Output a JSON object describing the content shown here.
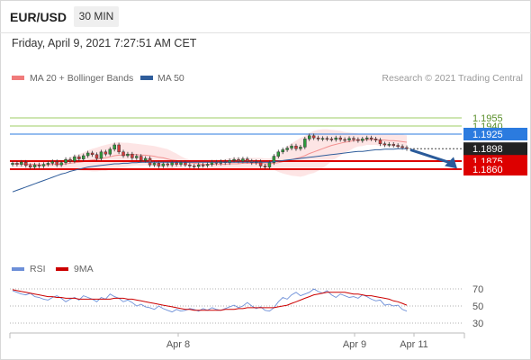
{
  "header": {
    "symbol": "EUR/USD",
    "timeframe": "30 MIN",
    "timestamp": "Friday, April 9, 2021 7:27:51 AM CET"
  },
  "colors": {
    "bollinger": "#f07b7b",
    "ma50": "#2f5d9b",
    "green_level": "#9ccc65",
    "blue_level": "#2b7bdf",
    "red_level": "#dd0000",
    "price_label": "#222222",
    "arrow": "#2a5a9a",
    "rsi": "#6d8fd8",
    "rsi_ma": "#cc0000"
  },
  "chart_data": [
    {
      "type": "candlestick",
      "title": "EUR/USD 30 MIN",
      "legend": [
        {
          "name": "MA 20 + Bollinger Bands",
          "color": "#f07b7b"
        },
        {
          "name": "MA 50",
          "color": "#2f5d9b"
        }
      ],
      "legend_placement": "top-left",
      "credit": "Research © 2021 Trading Central",
      "ylim": [
        1.18,
        1.197
      ],
      "x_ticks": [
        "Apr 8",
        "Apr 9",
        "Apr 11"
      ],
      "levels": [
        {
          "value": 1.1955,
          "label": "1.1955",
          "kind": "resistance"
        },
        {
          "value": 1.194,
          "label": "1.1940",
          "kind": "resistance"
        },
        {
          "value": 1.1925,
          "label": "1.1925",
          "kind": "pivot"
        },
        {
          "value": 1.1875,
          "label": "1.1875",
          "kind": "support"
        },
        {
          "value": 1.186,
          "label": "1.1860",
          "kind": "support"
        }
      ],
      "last_price": {
        "value": 1.1898,
        "label": "1.1898"
      },
      "forecast_arrow": {
        "from": 1.1896,
        "to": 1.1861,
        "direction": "down"
      },
      "closes": [
        1.1871,
        1.1869,
        1.1873,
        1.1867,
        1.1864,
        1.1868,
        1.1866,
        1.1869,
        1.1871,
        1.1874,
        1.1868,
        1.1872,
        1.1878,
        1.1875,
        1.1883,
        1.1879,
        1.1885,
        1.189,
        1.1887,
        1.188,
        1.1892,
        1.1888,
        1.1897,
        1.1905,
        1.1892,
        1.1885,
        1.1888,
        1.1881,
        1.1884,
        1.1876,
        1.188,
        1.1868,
        1.1871,
        1.1866,
        1.187,
        1.1868,
        1.1872,
        1.1869,
        1.1872,
        1.1868,
        1.1866,
        1.1865,
        1.1868,
        1.1867,
        1.1869,
        1.1873,
        1.1871,
        1.1874,
        1.1872,
        1.1876,
        1.1878,
        1.1875,
        1.1879,
        1.1875,
        1.1872,
        1.1874,
        1.1866,
        1.1864,
        1.1872,
        1.1884,
        1.1892,
        1.1896,
        1.1899,
        1.1903,
        1.1898,
        1.1901,
        1.1916,
        1.1922,
        1.1918,
        1.1916,
        1.1917,
        1.1916,
        1.1915,
        1.1918,
        1.1915,
        1.1914,
        1.1917,
        1.1915,
        1.1913,
        1.1916,
        1.1918,
        1.1916,
        1.1914,
        1.1907,
        1.1905,
        1.1906,
        1.1904,
        1.1902,
        1.19,
        1.1898
      ],
      "opens": [
        1.1869,
        1.1871,
        1.1869,
        1.1873,
        1.1867,
        1.1864,
        1.1868,
        1.1866,
        1.1869,
        1.1871,
        1.1874,
        1.1868,
        1.1872,
        1.1878,
        1.1875,
        1.1883,
        1.1879,
        1.1885,
        1.189,
        1.1887,
        1.188,
        1.1892,
        1.1888,
        1.1897,
        1.1905,
        1.1892,
        1.1885,
        1.1888,
        1.1881,
        1.1884,
        1.1876,
        1.188,
        1.1868,
        1.1871,
        1.1866,
        1.187,
        1.1868,
        1.1872,
        1.1869,
        1.1872,
        1.1868,
        1.1866,
        1.1865,
        1.1868,
        1.1867,
        1.1869,
        1.1873,
        1.1871,
        1.1874,
        1.1872,
        1.1876,
        1.1878,
        1.1875,
        1.1879,
        1.1875,
        1.1872,
        1.1874,
        1.1866,
        1.1864,
        1.1872,
        1.1884,
        1.1892,
        1.1896,
        1.1899,
        1.1903,
        1.1898,
        1.1901,
        1.1916,
        1.1922,
        1.1918,
        1.1916,
        1.1917,
        1.1916,
        1.1915,
        1.1918,
        1.1915,
        1.1914,
        1.1917,
        1.1915,
        1.1913,
        1.1916,
        1.1918,
        1.1916,
        1.1914,
        1.1907,
        1.1905,
        1.1906,
        1.1904,
        1.1902,
        1.19
      ],
      "ma20": [
        1.187,
        1.187,
        1.187,
        1.1869,
        1.1869,
        1.1869,
        1.1868,
        1.1868,
        1.1868,
        1.1869,
        1.1869,
        1.1869,
        1.187,
        1.1871,
        1.1872,
        1.1873,
        1.1874,
        1.1876,
        1.1877,
        1.1878,
        1.188,
        1.1881,
        1.1883,
        1.1885,
        1.1886,
        1.1886,
        1.1887,
        1.1887,
        1.1887,
        1.1886,
        1.1886,
        1.1885,
        1.1884,
        1.1882,
        1.1881,
        1.1879,
        1.1877,
        1.1876,
        1.1874,
        1.1873,
        1.1872,
        1.1871,
        1.187,
        1.1869,
        1.1869,
        1.1869,
        1.1869,
        1.1869,
        1.1869,
        1.187,
        1.187,
        1.187,
        1.1871,
        1.1871,
        1.1871,
        1.1871,
        1.1871,
        1.187,
        1.187,
        1.1871,
        1.1872,
        1.1874,
        1.1876,
        1.1878,
        1.188,
        1.1882,
        1.1885,
        1.1889,
        1.1892,
        1.1895,
        1.1898,
        1.1901,
        1.1904,
        1.1906,
        1.1908,
        1.191,
        1.1911,
        1.1913,
        1.1914,
        1.1914,
        1.1915,
        1.1915,
        1.1915,
        1.1914,
        1.1914,
        1.1913,
        1.1913,
        1.1912,
        1.1911,
        1.191
      ],
      "bb_upper": [
        1.1877,
        1.1877,
        1.1877,
        1.1876,
        1.1876,
        1.1876,
        1.1875,
        1.1875,
        1.1875,
        1.1876,
        1.1876,
        1.1877,
        1.1879,
        1.1882,
        1.1885,
        1.1888,
        1.1891,
        1.1895,
        1.1898,
        1.19,
        1.1903,
        1.1905,
        1.1907,
        1.1909,
        1.191,
        1.1909,
        1.1909,
        1.1908,
        1.1907,
        1.1906,
        1.1905,
        1.1904,
        1.1903,
        1.1901,
        1.1899,
        1.1897,
        1.1893,
        1.1889,
        1.1884,
        1.188,
        1.1878,
        1.1876,
        1.1875,
        1.1875,
        1.1875,
        1.1876,
        1.1877,
        1.1878,
        1.1879,
        1.188,
        1.1881,
        1.1881,
        1.1881,
        1.1881,
        1.1881,
        1.1881,
        1.1881,
        1.188,
        1.188,
        1.1883,
        1.1889,
        1.1896,
        1.1902,
        1.1908,
        1.1913,
        1.1918,
        1.1922,
        1.1927,
        1.1931,
        1.1933,
        1.1934,
        1.1934,
        1.1933,
        1.1932,
        1.1931,
        1.1929,
        1.1928,
        1.1927,
        1.1926,
        1.1925,
        1.1925,
        1.1925,
        1.1925,
        1.1925,
        1.1925,
        1.1925,
        1.1925,
        1.1924,
        1.1924,
        1.1923
      ],
      "bb_lower": [
        1.1863,
        1.1863,
        1.1863,
        1.1862,
        1.1862,
        1.1862,
        1.1861,
        1.1861,
        1.1861,
        1.1862,
        1.1862,
        1.1861,
        1.1861,
        1.186,
        1.1859,
        1.1858,
        1.1857,
        1.1857,
        1.1856,
        1.1856,
        1.1857,
        1.1857,
        1.1859,
        1.1861,
        1.1862,
        1.1863,
        1.1865,
        1.1866,
        1.1867,
        1.1866,
        1.1867,
        1.1866,
        1.1865,
        1.1863,
        1.1863,
        1.1861,
        1.1861,
        1.1863,
        1.1864,
        1.1866,
        1.1866,
        1.1866,
        1.1865,
        1.1863,
        1.1863,
        1.1862,
        1.1861,
        1.186,
        1.1859,
        1.186,
        1.1859,
        1.1859,
        1.1861,
        1.1861,
        1.1861,
        1.1861,
        1.1861,
        1.186,
        1.186,
        1.1859,
        1.1855,
        1.1852,
        1.185,
        1.1848,
        1.1847,
        1.1846,
        1.1848,
        1.1851,
        1.1853,
        1.1857,
        1.1862,
        1.1868,
        1.1875,
        1.188,
        1.1885,
        1.1891,
        1.1894,
        1.1899,
        1.1902,
        1.1903,
        1.1905,
        1.1905,
        1.1905,
        1.1903,
        1.1903,
        1.1901,
        1.1901,
        1.19,
        1.1898,
        1.1897
      ],
      "ma50": [
        1.1818,
        1.1821,
        1.1824,
        1.1827,
        1.183,
        1.1833,
        1.1836,
        1.1839,
        1.1842,
        1.1845,
        1.1848,
        1.1851,
        1.1853,
        1.1856,
        1.1858,
        1.186,
        1.1862,
        1.1864,
        1.1865,
        1.1866,
        1.1867,
        1.1868,
        1.1869,
        1.187,
        1.187,
        1.1871,
        1.1871,
        1.1872,
        1.1872,
        1.1873,
        1.1873,
        1.1873,
        1.1873,
        1.1873,
        1.1873,
        1.1873,
        1.1873,
        1.1873,
        1.1873,
        1.1873,
        1.1873,
        1.1873,
        1.1873,
        1.1873,
        1.1873,
        1.1873,
        1.1873,
        1.1873,
        1.1873,
        1.1873,
        1.1873,
        1.1873,
        1.1873,
        1.1873,
        1.1873,
        1.1873,
        1.1873,
        1.1873,
        1.1873,
        1.1874,
        1.1875,
        1.1876,
        1.1877,
        1.1878,
        1.1879,
        1.188,
        1.1881,
        1.1882,
        1.1883,
        1.1884,
        1.1885,
        1.1886,
        1.1887,
        1.1888,
        1.1889,
        1.189,
        1.1891,
        1.1892,
        1.1893,
        1.1893,
        1.1894,
        1.1895,
        1.1896,
        1.1896,
        1.1897,
        1.1897,
        1.1897,
        1.1898,
        1.1898,
        1.1898
      ]
    },
    {
      "type": "line",
      "title": "RSI",
      "legend": [
        {
          "name": "RSI",
          "color": "#6d8fd8"
        },
        {
          "name": "9MA",
          "color": "#cc0000"
        }
      ],
      "ylim": [
        25,
        75
      ],
      "y_ticks": [
        {
          "value": 70,
          "label": "70"
        },
        {
          "value": 50,
          "label": "50"
        },
        {
          "value": 30,
          "label": "30"
        }
      ],
      "rsi": [
        68,
        66,
        64,
        63,
        65,
        61,
        60,
        58,
        57,
        60,
        62,
        59,
        55,
        58,
        60,
        57,
        62,
        60,
        58,
        55,
        60,
        58,
        64,
        61,
        59,
        55,
        57,
        54,
        50,
        52,
        49,
        48,
        46,
        50,
        47,
        45,
        43,
        46,
        44,
        45,
        47,
        46,
        44,
        47,
        45,
        48,
        46,
        45,
        47,
        49,
        51,
        48,
        50,
        54,
        50,
        47,
        49,
        45,
        44,
        48,
        55,
        60,
        58,
        63,
        66,
        62,
        64,
        66,
        70,
        67,
        65,
        68,
        63,
        60,
        64,
        62,
        60,
        61,
        59,
        63,
        61,
        58,
        56,
        57,
        51,
        52,
        50,
        51,
        46,
        44
      ],
      "rsi_ma": [
        69,
        68,
        67,
        66,
        65,
        64,
        63,
        62,
        61,
        61,
        60,
        60,
        59,
        59,
        59,
        58,
        58,
        58,
        58,
        58,
        58,
        58,
        58,
        59,
        59,
        59,
        58,
        58,
        57,
        56,
        55,
        54,
        53,
        52,
        51,
        50,
        49,
        48,
        47,
        46,
        46,
        45,
        45,
        45,
        45,
        45,
        45,
        45,
        46,
        46,
        46,
        47,
        47,
        48,
        48,
        48,
        48,
        48,
        48,
        48,
        49,
        50,
        51,
        53,
        55,
        57,
        59,
        61,
        63,
        64,
        65,
        66,
        66,
        66,
        66,
        66,
        65,
        64,
        64,
        63,
        62,
        62,
        61,
        60,
        59,
        58,
        56,
        55,
        53,
        51
      ]
    }
  ]
}
